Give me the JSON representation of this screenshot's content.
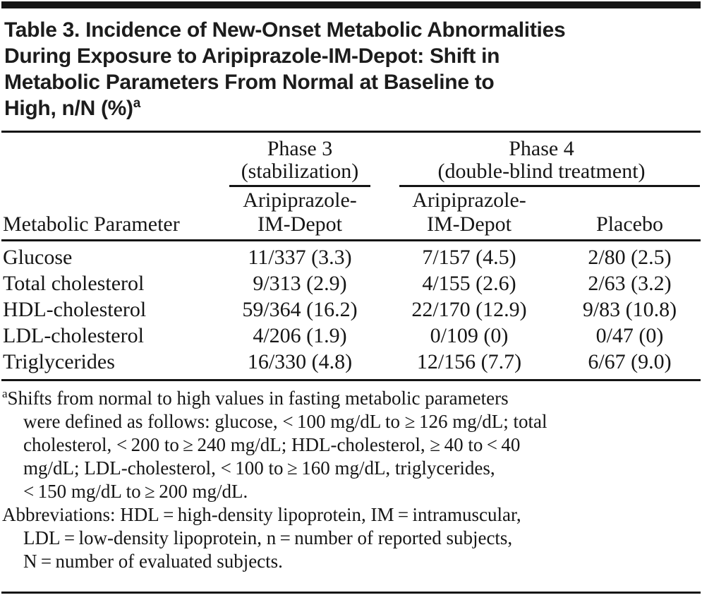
{
  "title": {
    "lines": [
      "Table 3. Incidence of New-Onset Metabolic Abnormalities",
      "During Exposure to Aripiprazole-IM-Depot: Shift in",
      "Metabolic Parameters From Normal at Baseline to",
      "High, n/N (%)"
    ],
    "superscript": "a"
  },
  "header": {
    "param_col": "Metabolic Parameter",
    "phase3": {
      "title": "Phase 3",
      "subtitle": "(stabilization)"
    },
    "phase4": {
      "title": "Phase 4",
      "subtitle": "(double-blind treatment)"
    },
    "col2": {
      "line1": "Aripiprazole-",
      "line2": "IM-Depot"
    },
    "col3": {
      "line1": "Aripiprazole-",
      "line2": "IM-Depot"
    },
    "col4": "Placebo"
  },
  "rows": [
    {
      "param": "Glucose",
      "phase3_ari": "11/337 (3.3)",
      "phase4_ari": "7/157 (4.5)",
      "phase4_placebo": "2/80 (2.5)"
    },
    {
      "param": "Total cholesterol",
      "phase3_ari": "9/313 (2.9)",
      "phase4_ari": "4/155 (2.6)",
      "phase4_placebo": "2/63 (3.2)"
    },
    {
      "param": "HDL-cholesterol",
      "phase3_ari": "59/364 (16.2)",
      "phase4_ari": "22/170 (12.9)",
      "phase4_placebo": "9/83 (10.8)"
    },
    {
      "param": "LDL-cholesterol",
      "phase3_ari": "4/206 (1.9)",
      "phase4_ari": "0/109 (0)",
      "phase4_placebo": "0/47 (0)"
    },
    {
      "param": "Triglycerides",
      "phase3_ari": "16/330 (4.8)",
      "phase4_ari": "12/156 (7.7)",
      "phase4_placebo": "6/67 (9.0)"
    }
  ],
  "footnotes": {
    "marker": "a",
    "shift_lines": [
      "Shifts from normal to high values in fasting metabolic parameters",
      "were defined as follows: glucose, < 100 mg/dL to ≥ 126 mg/dL; total",
      "cholesterol, < 200 to ≥ 240 mg/dL; HDL-cholesterol, ≥ 40 to < 40",
      "mg/dL; LDL-cholesterol, < 100 to ≥ 160 mg/dL, triglycerides,",
      "< 150 mg/dL to ≥ 200 mg/dL."
    ],
    "abbrev_lines": [
      "Abbreviations: HDL = high-density lipoprotein, IM = intramuscular,",
      "LDL = low-density lipoprotein, n = number of reported subjects,",
      "N = number of evaluated subjects."
    ]
  }
}
